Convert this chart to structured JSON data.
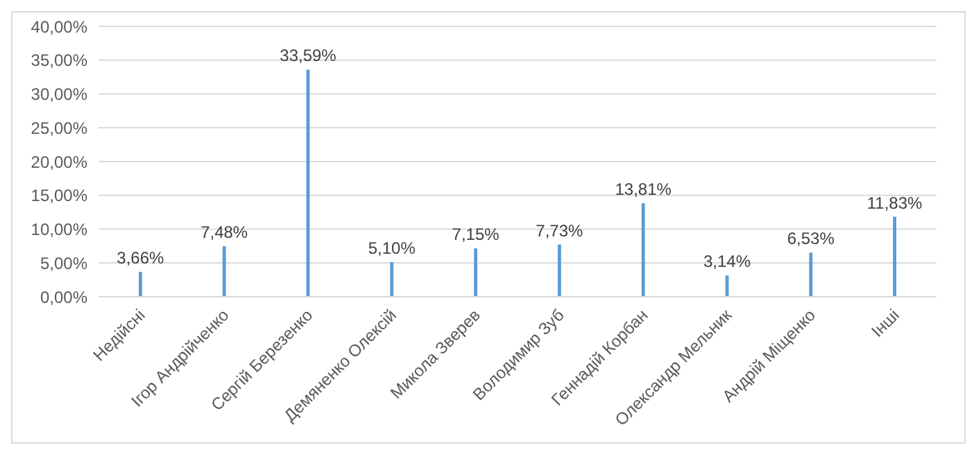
{
  "chart_data": {
    "type": "bar",
    "categories": [
      "Недійсні",
      "Ігор Андрійченко",
      "Сергій Березенко",
      "Демяненко Олексій",
      "Микола Зверев",
      "Володимир Зуб",
      "Геннадій Корбан",
      "Олександр Мельник",
      "Андрій Міщенко",
      "Інші"
    ],
    "values": [
      3.66,
      7.48,
      33.59,
      5.1,
      7.15,
      7.73,
      13.81,
      3.14,
      6.53,
      11.83
    ],
    "value_labels": [
      "3,66%",
      "7,48%",
      "33,59%",
      "5,10%",
      "7,15%",
      "7,73%",
      "13,81%",
      "3,14%",
      "6,53%",
      "11,83%"
    ],
    "color": "#5b9bd5",
    "ylim": [
      0,
      40
    ],
    "yticks": [
      {
        "value": 0,
        "label": "0,00%"
      },
      {
        "value": 5,
        "label": "5,00%"
      },
      {
        "value": 10,
        "label": "10,00%"
      },
      {
        "value": 15,
        "label": "15,00%"
      },
      {
        "value": 20,
        "label": "20,00%"
      },
      {
        "value": 25,
        "label": "25,00%"
      },
      {
        "value": 30,
        "label": "30,00%"
      },
      {
        "value": 35,
        "label": "35,00%"
      },
      {
        "value": 40,
        "label": "40,00%"
      }
    ],
    "grid": "y"
  }
}
